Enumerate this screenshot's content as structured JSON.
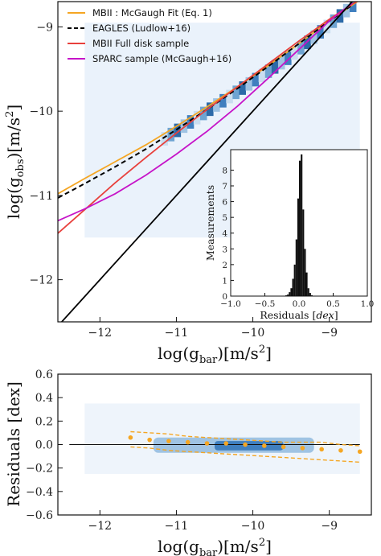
{
  "chart_data": [
    {
      "type": "line",
      "xlabel": "log(g_bar)[m/s^2]",
      "ylabel": "log(g_obs)[m/s^2]",
      "xlim": [
        -12.55,
        -8.45
      ],
      "ylim": [
        -12.5,
        -8.7
      ],
      "x_ticks": [
        -12,
        -11,
        -10,
        -9
      ],
      "y_ticks": [
        -12,
        -11,
        -10,
        -9
      ],
      "x_tick_labels": [
        "−12",
        "−11",
        "−10",
        "−9"
      ],
      "y_tick_labels": [
        "−12",
        "−11",
        "−10",
        "−9"
      ],
      "legend_position": "top-left",
      "series": [
        {
          "name": "MBII : McGaugh Fit (Eq. 1)",
          "color": "#f5a623",
          "dash": "solid",
          "x": [
            -12.55,
            -12.2,
            -11.8,
            -11.4,
            -11.0,
            -10.6,
            -10.2,
            -9.8,
            -9.4,
            -9.0,
            -8.7,
            -8.6
          ],
          "y": [
            -10.98,
            -10.8,
            -10.6,
            -10.4,
            -10.18,
            -9.95,
            -9.71,
            -9.46,
            -9.2,
            -8.93,
            -8.74,
            -8.68
          ]
        },
        {
          "name": "EAGLES (Ludlow+16)",
          "color": "#000000",
          "dash": "dashed",
          "x": [
            -12.55,
            -12.2,
            -11.8,
            -11.4,
            -11.0,
            -10.6,
            -10.2,
            -9.8,
            -9.4,
            -9.0,
            -8.7
          ],
          "y": [
            -11.03,
            -10.86,
            -10.66,
            -10.45,
            -10.22,
            -9.98,
            -9.73,
            -9.47,
            -9.2,
            -8.93,
            -8.74
          ]
        },
        {
          "name": "MBII Full disk sample",
          "color": "#e8403c",
          "dash": "solid",
          "x": [
            -12.55,
            -12.2,
            -11.8,
            -11.4,
            -11.0,
            -10.6,
            -10.2,
            -9.8,
            -9.4,
            -9.0,
            -8.7,
            -8.6
          ],
          "y": [
            -11.45,
            -11.17,
            -10.85,
            -10.55,
            -10.26,
            -9.98,
            -9.71,
            -9.44,
            -9.17,
            -8.91,
            -8.73,
            -8.68
          ]
        },
        {
          "name": "SPARC sample (McGaugh+16)",
          "color": "#c614c8",
          "dash": "solid",
          "x": [
            -12.55,
            -12.2,
            -11.8,
            -11.4,
            -11.0,
            -10.6,
            -10.2,
            -9.8,
            -9.4,
            -9.0,
            -8.7
          ],
          "y": [
            -11.3,
            -11.16,
            -10.98,
            -10.76,
            -10.51,
            -10.24,
            -9.94,
            -9.61,
            -9.27,
            -8.93,
            -8.72
          ]
        },
        {
          "name": "",
          "color": "#000000",
          "dash": "solid",
          "x": [
            -12.5,
            -8.7
          ],
          "y": [
            -12.5,
            -8.7
          ]
        }
      ]
    },
    {
      "type": "bar",
      "xlabel": "Residuals [dex]",
      "ylabel": "Measurements",
      "xlim": [
        -1.0,
        1.0
      ],
      "ylim": [
        0,
        9.3
      ],
      "x_ticks": [
        -1.0,
        -0.5,
        0.0,
        0.5,
        1.0
      ],
      "x_tick_labels": [
        "−1.0",
        "−0.5",
        "0.0",
        "0.5",
        "1.0"
      ],
      "y_ticks": [
        0,
        1,
        2,
        3,
        4,
        5,
        6,
        7,
        8
      ],
      "y_tick_labels": [
        "0",
        "1",
        "2",
        "3",
        "4",
        "5",
        "6",
        "7",
        "8"
      ],
      "color": "#111111",
      "bins_x": [
        -0.2,
        -0.175,
        -0.15,
        -0.125,
        -0.1,
        -0.075,
        -0.05,
        -0.025,
        0.0,
        0.025,
        0.05,
        0.075,
        0.1,
        0.125,
        0.15,
        0.175
      ],
      "values": [
        0.05,
        0.1,
        0.25,
        0.5,
        1.1,
        2.0,
        3.6,
        6.2,
        8.6,
        9.0,
        5.5,
        3.0,
        1.5,
        0.5,
        0.2,
        0.05
      ]
    },
    {
      "type": "scatter",
      "xlabel": "log(g_bar)[m/s^2]",
      "ylabel": "Residuals [dex]",
      "xlim": [
        -12.55,
        -8.45
      ],
      "ylim": [
        -0.6,
        0.6
      ],
      "x_ticks": [
        -12,
        -11,
        -10,
        -9
      ],
      "x_tick_labels": [
        "−12",
        "−11",
        "−10",
        "−9"
      ],
      "y_ticks": [
        -0.6,
        -0.4,
        -0.2,
        0.0,
        0.2,
        0.4,
        0.6
      ],
      "y_tick_labels": [
        "−0.6",
        "−0.4",
        "−0.2",
        "0.0",
        "0.2",
        "0.4",
        "0.6"
      ],
      "median": {
        "color": "#f5a623",
        "x": [
          -11.6,
          -11.35,
          -11.1,
          -10.85,
          -10.6,
          -10.35,
          -10.1,
          -9.85,
          -9.6,
          -9.35,
          -9.1,
          -8.85,
          -8.6
        ],
        "y": [
          0.06,
          0.04,
          0.03,
          0.02,
          0.01,
          0.01,
          0.0,
          -0.01,
          -0.02,
          -0.03,
          -0.04,
          -0.05,
          -0.06
        ]
      },
      "upper_band": [
        0.11,
        0.1,
        0.09,
        0.07,
        0.06,
        0.05,
        0.04,
        0.03,
        0.02,
        0.02,
        0.02,
        0.0,
        -0.01
      ],
      "lower_band": [
        -0.02,
        -0.03,
        -0.05,
        -0.06,
        -0.07,
        -0.08,
        -0.09,
        -0.1,
        -0.11,
        -0.12,
        -0.13,
        -0.14,
        -0.15
      ],
      "zero_line": 0.0
    }
  ],
  "main": {
    "ylabel_main": "log(g",
    "ylabel_sub": "obs",
    "ylabel_tail": ")[m/s",
    "ylabel_sup": "2",
    "ylabel_end": "]",
    "xlabel_main": "log(g",
    "xlabel_sub": "bar",
    "xlabel_tail": ")[m/s",
    "xlabel_sup": "2",
    "xlabel_end": "]"
  },
  "residual": {
    "ylabel": "Residuals [dex]",
    "xlabel_main": "log(g",
    "xlabel_sub": "bar",
    "xlabel_tail": ")[m/s",
    "xlabel_sup": "2",
    "xlabel_end": "]"
  },
  "inset": {
    "ylabel": "Measurements",
    "xlabel_main": "Residuals [",
    "xlabel_unit": "dex",
    "xlabel_end": "]"
  }
}
